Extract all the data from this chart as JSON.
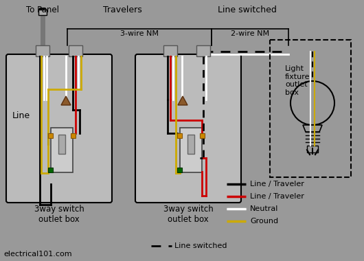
{
  "bg_color": "#999999",
  "wire_black": "#000000",
  "wire_red": "#cc0000",
  "wire_white": "#ffffff",
  "wire_ground": "#ccaa00",
  "box_fill": "#bbbbbb",
  "box_edge": "#000000",
  "wire_nut_color": "#8B5A2B",
  "screw_gold": "#cc8800",
  "screw_green": "#006600",
  "to_panel_label": "To Panel",
  "travelers_label": "Travelers",
  "line_switched_label": "Line switched",
  "nm3_label": "3-wire NM",
  "nm2_label": "2-wire NM",
  "box1_label": "3way switch\noutlet box",
  "box2_label": "3way switch\noutlet box",
  "line_label": "Line",
  "light_label": "Light\nfixture\noutlet\nbox",
  "website": "electrical101.com",
  "legend_items": [
    {
      "color": "#000000",
      "label": "Line / Traveler",
      "dash": false
    },
    {
      "color": "#cc0000",
      "label": "Line / Traveler",
      "dash": false
    },
    {
      "color": "#ffffff",
      "label": "Neutral",
      "dash": false
    },
    {
      "color": "#ccaa00",
      "label": "Ground",
      "dash": false
    },
    {
      "color": "#000000",
      "label": "Line switched",
      "dash": true
    }
  ]
}
